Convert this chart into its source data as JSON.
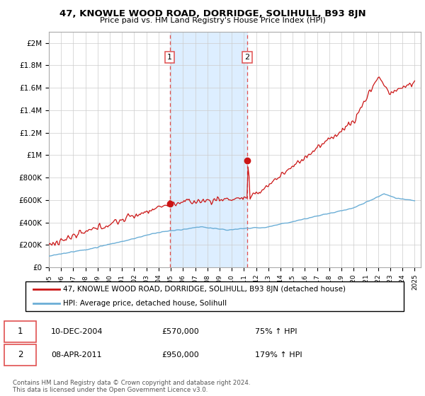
{
  "title": "47, KNOWLE WOOD ROAD, DORRIDGE, SOLIHULL, B93 8JN",
  "subtitle": "Price paid vs. HM Land Registry's House Price Index (HPI)",
  "ytick_labels": [
    "£0",
    "£200K",
    "£400K",
    "£600K",
    "£800K",
    "£1M",
    "£1.2M",
    "£1.4M",
    "£1.6M",
    "£1.8M",
    "£2M"
  ],
  "yticks": [
    0,
    200000,
    400000,
    600000,
    800000,
    1000000,
    1200000,
    1400000,
    1600000,
    1800000,
    2000000
  ],
  "ylim_max": 2100000,
  "xlim_min": 1995,
  "xlim_max": 2025.5,
  "sale1_year": 2004.92,
  "sale1_price": 570000,
  "sale2_year": 2011.27,
  "sale2_price": 950000,
  "hpi_color": "#6baed6",
  "property_color": "#cb1515",
  "vline_color": "#e05050",
  "highlight_color": "#ddeeff",
  "legend_label_property": "47, KNOWLE WOOD ROAD, DORRIDGE, SOLIHULL, B93 8JN (detached house)",
  "legend_label_hpi": "HPI: Average price, detached house, Solihull",
  "annotation1_label": "1",
  "annotation1_date": "10-DEC-2004",
  "annotation1_price": "£570,000",
  "annotation1_hpi": "75% ↑ HPI",
  "annotation2_label": "2",
  "annotation2_date": "08-APR-2011",
  "annotation2_price": "£950,000",
  "annotation2_hpi": "179% ↑ HPI",
  "footer1": "Contains HM Land Registry data © Crown copyright and database right 2024.",
  "footer2": "This data is licensed under the Open Government Licence v3.0."
}
